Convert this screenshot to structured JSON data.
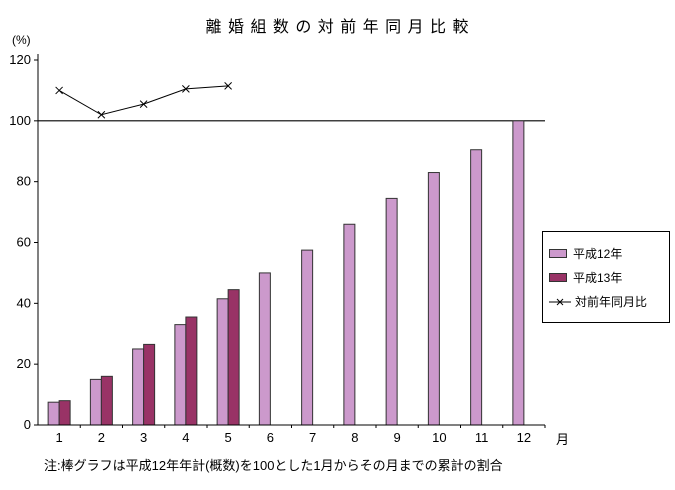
{
  "title": "離 婚 組 数 の 対 前 年 同 月 比 較",
  "y_axis_unit": "(%)",
  "x_axis_unit": "月",
  "note": "注:棒グラフは平成12年年計(概数)を100とした1月からその月までの累計の割合",
  "chart_data": {
    "type": "bar",
    "title": "離婚組数の対前年同月比較",
    "categories": [
      "1",
      "2",
      "3",
      "4",
      "5",
      "6",
      "7",
      "8",
      "9",
      "10",
      "11",
      "12"
    ],
    "series": [
      {
        "name": "平成12年",
        "type": "bar",
        "color": "#CC99CC",
        "border": "#333333",
        "values": [
          7.5,
          15,
          25,
          33,
          41.5,
          50,
          57.5,
          66,
          74.5,
          83,
          90.5,
          100
        ]
      },
      {
        "name": "平成13年",
        "type": "bar",
        "color": "#993366",
        "border": "#333333",
        "values": [
          8,
          16,
          26.5,
          35.5,
          44.5,
          null,
          null,
          null,
          null,
          null,
          null,
          null
        ]
      },
      {
        "name": "対前年同月比",
        "type": "line",
        "color": "#000000",
        "marker": "x",
        "values": [
          110,
          102,
          105.5,
          110.5,
          111.5,
          null,
          null,
          null,
          null,
          null,
          null,
          null
        ]
      }
    ],
    "xlabel": "月",
    "ylabel": "(%)",
    "ylim": [
      0,
      120
    ],
    "yticks": [
      0,
      20,
      40,
      60,
      80,
      100,
      120
    ],
    "reference_line": 100,
    "grid": false,
    "legend_position": "right"
  }
}
